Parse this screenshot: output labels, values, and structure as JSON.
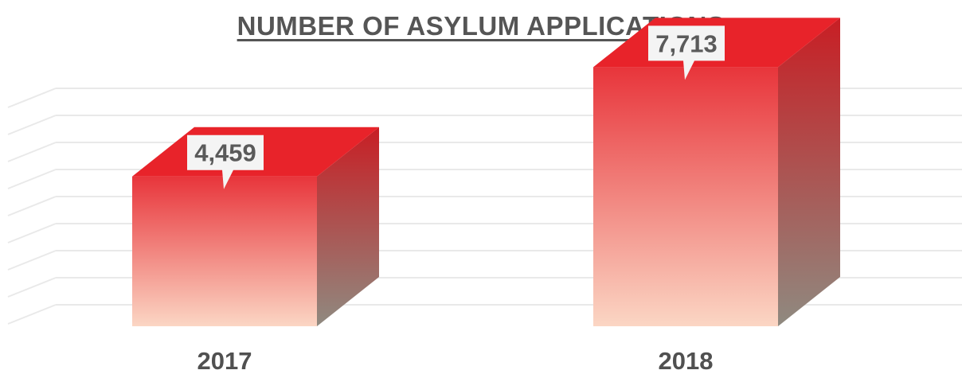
{
  "chart_data": {
    "type": "bar",
    "title": "NUMBER OF ASYLUM APPLICATIONS",
    "categories": [
      "2017",
      "2018"
    ],
    "values": [
      4459,
      7713
    ],
    "value_labels": [
      "4,459",
      "7,713"
    ],
    "xlabel": "",
    "ylabel": "",
    "ylim": [
      0,
      9000
    ],
    "grid": true,
    "legend": "none",
    "style": "3d-box",
    "colors": {
      "bar_top": "#e8232a",
      "bar_front_top": "#e8353b",
      "bar_front_bottom": "#fbd6c4",
      "bar_side_top": "#c81e24",
      "bar_side_bottom": "#8f8a80",
      "grid": "#e9e9e9",
      "label_text": "#5a5a5a",
      "callout_bg": "#f4f4f4"
    }
  }
}
